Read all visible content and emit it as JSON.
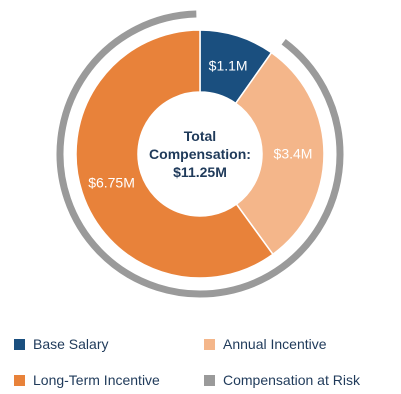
{
  "chart_data": {
    "type": "pie",
    "variant": "donut",
    "center_label": [
      "Total",
      "Compensation:",
      "$11.25M"
    ],
    "slices": [
      {
        "label": "Base Salary",
        "value": 1.1,
        "display": "$1.1M",
        "color": "#1a4f7f",
        "text_color": "#ffffff"
      },
      {
        "label": "Annual Incentive",
        "value": 3.4,
        "display": "$3.4M",
        "color": "#f4b68a",
        "text_color": "#ffffff"
      },
      {
        "label": "Long-Term Incentive",
        "value": 6.75,
        "display": "$6.75M",
        "color": "#e8823a",
        "text_color": "#ffffff"
      }
    ],
    "outer_arc": {
      "label": "Compensation at Risk",
      "color": "#9a9a9a",
      "covers": [
        "Annual Incentive",
        "Long-Term Incentive"
      ]
    },
    "legend_position": "bottom",
    "legend": [
      {
        "label": "Base Salary",
        "color": "#1a4f7f"
      },
      {
        "label": "Annual Incentive",
        "color": "#f4b68a"
      },
      {
        "label": "Long-Term Incentive",
        "color": "#e8823a"
      },
      {
        "label": "Compensation at Risk",
        "color": "#9a9a9a"
      }
    ]
  }
}
